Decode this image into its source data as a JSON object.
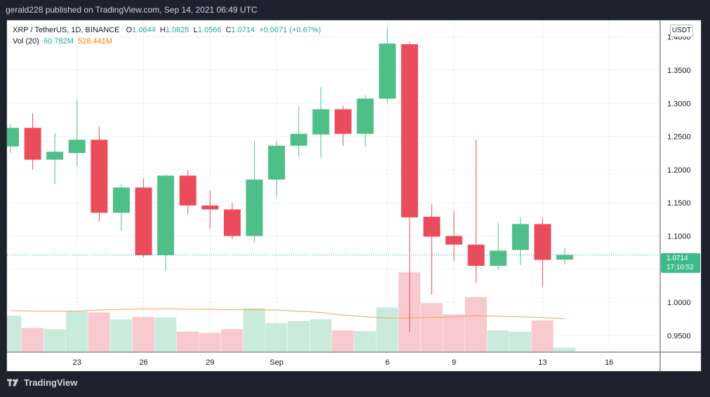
{
  "header": {
    "publisher_text": "gerald228 published on TradingView.com, Sep 14, 2021 06:49 UTC"
  },
  "legend": {
    "symbol": "XRP / TetherUS, 1D, BINANCE",
    "open_label": "O",
    "open": "1.0644",
    "high_label": "H",
    "high": "1.0825",
    "low_label": "L",
    "low": "1.0566",
    "close_label": "C",
    "close": "1.0714",
    "change": "+0.0071 (+0.67%)",
    "vol_label": "Vol (20)",
    "vol_value": "60.782M",
    "vol_ma": "528.441M"
  },
  "currency_button": "USDT",
  "price_tag": {
    "price": "1.0714",
    "countdown": "17:10:52"
  },
  "footer": {
    "brand": "TradingView"
  },
  "colors": {
    "up": "#26a69a",
    "down": "#ef5350",
    "vol_up": "#c8ebdc",
    "vol_down": "#f8c9cf",
    "ma": "#f5a35c"
  },
  "chart_data": {
    "type": "candlestick",
    "title": "XRP / TetherUS, 1D, BINANCE",
    "y_ticks": [
      "1.4000",
      "1.3500",
      "1.3000",
      "1.2500",
      "1.2000",
      "1.1500",
      "1.1000",
      "1.0500",
      "1.0000",
      "0.9500"
    ],
    "x_ticks": [
      {
        "label": "23",
        "day": 23
      },
      {
        "label": "26",
        "day": 26
      },
      {
        "label": "29",
        "day": 29
      },
      {
        "label": "Sep",
        "day": 32
      },
      {
        "label": "6",
        "day": 37
      },
      {
        "label": "9",
        "day": 40
      },
      {
        "label": "13",
        "day": 44
      },
      {
        "label": "16",
        "day": 47
      }
    ],
    "ylim": [
      0.925,
      1.425
    ],
    "candles": [
      {
        "day": 20,
        "open": 1.235,
        "high": 1.268,
        "low": 1.225,
        "close": 1.263
      },
      {
        "day": 21,
        "open": 1.263,
        "high": 1.285,
        "low": 1.2,
        "close": 1.215
      },
      {
        "day": 22,
        "open": 1.215,
        "high": 1.255,
        "low": 1.178,
        "close": 1.227
      },
      {
        "day": 23,
        "open": 1.225,
        "high": 1.305,
        "low": 1.205,
        "close": 1.245
      },
      {
        "day": 24,
        "open": 1.245,
        "high": 1.265,
        "low": 1.122,
        "close": 1.135
      },
      {
        "day": 25,
        "open": 1.135,
        "high": 1.178,
        "low": 1.108,
        "close": 1.173
      },
      {
        "day": 26,
        "open": 1.173,
        "high": 1.187,
        "low": 1.068,
        "close": 1.071
      },
      {
        "day": 27,
        "open": 1.071,
        "high": 1.192,
        "low": 1.048,
        "close": 1.191
      },
      {
        "day": 28,
        "open": 1.191,
        "high": 1.199,
        "low": 1.133,
        "close": 1.146
      },
      {
        "day": 29,
        "open": 1.146,
        "high": 1.168,
        "low": 1.111,
        "close": 1.14
      },
      {
        "day": 30,
        "open": 1.14,
        "high": 1.15,
        "low": 1.095,
        "close": 1.1
      },
      {
        "day": 31,
        "open": 1.1,
        "high": 1.243,
        "low": 1.091,
        "close": 1.185
      },
      {
        "day": 32,
        "open": 1.185,
        "high": 1.243,
        "low": 1.158,
        "close": 1.236
      },
      {
        "day": 33,
        "open": 1.236,
        "high": 1.295,
        "low": 1.22,
        "close": 1.254
      },
      {
        "day": 34,
        "open": 1.253,
        "high": 1.324,
        "low": 1.218,
        "close": 1.291
      },
      {
        "day": 35,
        "open": 1.291,
        "high": 1.296,
        "low": 1.236,
        "close": 1.254
      },
      {
        "day": 36,
        "open": 1.254,
        "high": 1.312,
        "low": 1.235,
        "close": 1.307
      },
      {
        "day": 37,
        "open": 1.307,
        "high": 1.414,
        "low": 1.3,
        "close": 1.39
      },
      {
        "day": 38,
        "open": 1.389,
        "high": 1.393,
        "low": 0.955,
        "close": 1.128
      },
      {
        "day": 39,
        "open": 1.129,
        "high": 1.148,
        "low": 1.012,
        "close": 1.099
      },
      {
        "day": 40,
        "open": 1.1,
        "high": 1.138,
        "low": 1.062,
        "close": 1.087
      },
      {
        "day": 41,
        "open": 1.087,
        "high": 1.245,
        "low": 1.029,
        "close": 1.055
      },
      {
        "day": 42,
        "open": 1.055,
        "high": 1.12,
        "low": 1.05,
        "close": 1.078
      },
      {
        "day": 43,
        "open": 1.079,
        "high": 1.128,
        "low": 1.056,
        "close": 1.118
      },
      {
        "day": 44,
        "open": 1.118,
        "high": 1.127,
        "low": 1.024,
        "close": 1.064
      },
      {
        "day": 45,
        "open": 1.0644,
        "high": 1.0825,
        "low": 1.0566,
        "close": 1.0714
      }
    ],
    "volume_max_units": 100,
    "volume": [
      58,
      38,
      36,
      65,
      63,
      52,
      56,
      55,
      32,
      30,
      36,
      70,
      46,
      49,
      52,
      34,
      33,
      71,
      128,
      78,
      60,
      88,
      34,
      32,
      50,
      6
    ],
    "volume_ma": [
      66,
      65.5,
      65,
      65.5,
      67,
      68,
      69,
      69,
      68.5,
      68,
      67.5,
      67.5,
      67,
      65,
      63,
      59,
      56,
      54,
      54.5,
      55,
      56,
      58,
      57,
      56,
      55,
      53
    ]
  }
}
